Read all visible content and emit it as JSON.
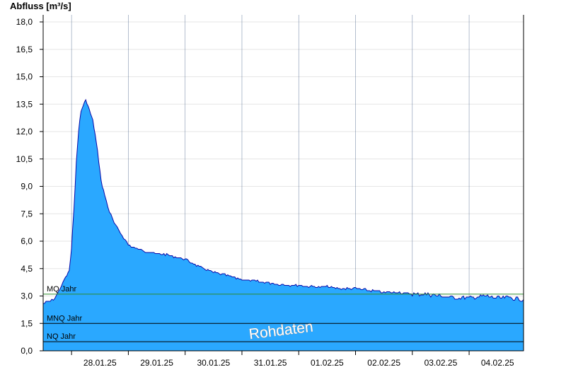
{
  "chart_data": {
    "type": "area",
    "ylabel": "Abfluss [m³/s]",
    "ylim": [
      0,
      18
    ],
    "yticks": [
      "0,0",
      "1,5",
      "3,0",
      "4,5",
      "6,0",
      "7,5",
      "9,0",
      "10,5",
      "12,0",
      "13,5",
      "15,0",
      "16,5",
      "18,0"
    ],
    "xlim": [
      "2025-01-27T12:00",
      "2025-02-04T23:00"
    ],
    "xtick_dates": [
      "2025-01-28T00:00",
      "2025-01-29T00:00",
      "2025-01-30T00:00",
      "2025-01-31T00:00",
      "2025-02-01T00:00",
      "2025-02-02T00:00",
      "2025-02-03T00:00",
      "2025-02-04T00:00"
    ],
    "xtick_labels": [
      "28.01.25",
      "29.01.25",
      "30.01.25",
      "31.01.25",
      "01.02.25",
      "02.02.25",
      "03.02.25",
      "04.02.25"
    ],
    "gridlines": "horizontal",
    "area_color": "#2aa8ff",
    "line_color": "#0a0aa8",
    "series": [
      {
        "x": [
          "2025-01-27T12:00",
          "2025-01-27T15:00",
          "2025-01-27T17:00",
          "2025-01-27T19:00",
          "2025-01-27T21:00",
          "2025-01-27T22:00",
          "2025-01-27T23:00",
          "2025-01-28T00:00",
          "2025-01-28T01:00",
          "2025-01-28T02:00",
          "2025-01-28T03:00",
          "2025-01-28T04:00",
          "2025-01-28T05:00",
          "2025-01-28T06:00",
          "2025-01-28T07:00",
          "2025-01-28T08:00",
          "2025-01-28T09:00",
          "2025-01-28T10:00",
          "2025-01-28T11:00",
          "2025-01-28T12:00",
          "2025-01-28T13:00",
          "2025-01-28T14:00",
          "2025-01-28T16:00",
          "2025-01-28T18:00",
          "2025-01-28T20:00",
          "2025-01-28T22:00",
          "2025-01-29T00:00",
          "2025-01-29T03:00",
          "2025-01-29T06:00",
          "2025-01-29T09:00",
          "2025-01-29T12:00",
          "2025-01-29T15:00",
          "2025-01-29T18:00",
          "2025-01-29T21:00",
          "2025-01-30T00:00",
          "2025-01-30T06:00",
          "2025-01-30T12:00",
          "2025-01-30T18:00",
          "2025-01-31T00:00",
          "2025-01-31T06:00",
          "2025-01-31T12:00",
          "2025-01-31T18:00",
          "2025-02-01T00:00",
          "2025-02-01T06:00",
          "2025-02-01T12:00",
          "2025-02-01T18:00",
          "2025-02-02T00:00",
          "2025-02-02T06:00",
          "2025-02-02T12:00",
          "2025-02-02T18:00",
          "2025-02-03T00:00",
          "2025-02-03T06:00",
          "2025-02-03T12:00",
          "2025-02-03T18:00",
          "2025-02-04T00:00",
          "2025-02-04T06:00",
          "2025-02-04T12:00",
          "2025-02-04T18:00",
          "2025-02-04T23:00"
        ],
        "y": [
          2.6,
          2.7,
          2.9,
          3.4,
          3.9,
          4.1,
          4.4,
          5.6,
          7.8,
          10.3,
          12.1,
          13.1,
          13.5,
          13.7,
          13.4,
          13.0,
          12.6,
          11.8,
          10.9,
          9.8,
          9.0,
          8.5,
          7.6,
          7.0,
          6.6,
          6.2,
          5.8,
          5.6,
          5.5,
          5.4,
          5.3,
          5.3,
          5.2,
          5.1,
          5.0,
          4.6,
          4.3,
          4.1,
          3.9,
          3.8,
          3.7,
          3.6,
          3.6,
          3.5,
          3.5,
          3.4,
          3.4,
          3.3,
          3.2,
          3.2,
          3.1,
          3.1,
          3.0,
          2.9,
          2.9,
          3.0,
          2.9,
          2.9,
          2.8
        ]
      }
    ],
    "reference_lines": [
      {
        "name": "MQ Jahr",
        "value": 3.1,
        "color": "#2e8b2e"
      },
      {
        "name": "MNQ Jahr",
        "value": 1.5,
        "color": "#000000"
      },
      {
        "name": "NQ Jahr",
        "value": 0.5,
        "color": "#000000"
      }
    ],
    "watermark": "Rohdaten"
  }
}
